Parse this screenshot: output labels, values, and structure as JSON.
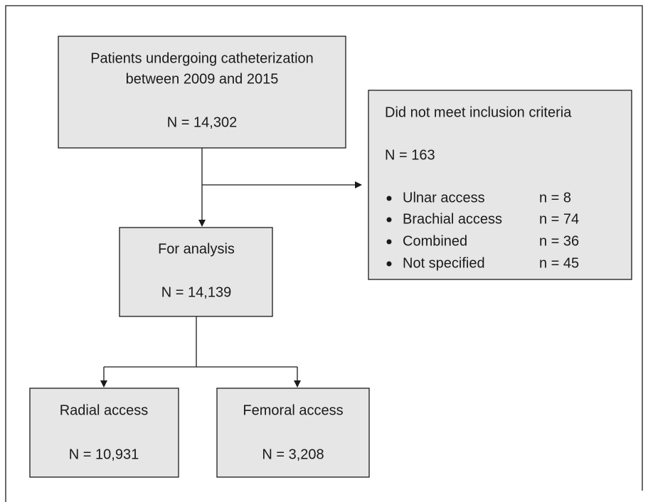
{
  "screening": {
    "lines": [
      "Patients undergoing catheterization",
      "between 2009 and 2015"
    ],
    "count": "N = 14,302"
  },
  "excluded": {
    "title": "Did not meet inclusion criteria",
    "count": "N = 163",
    "items": [
      {
        "label": "Ulnar access",
        "n": "n = 8"
      },
      {
        "label": "Brachial access",
        "n": "n = 74"
      },
      {
        "label": "Combined",
        "n": "n = 36"
      },
      {
        "label": "Not specified",
        "n": "n = 45"
      }
    ]
  },
  "analysis": {
    "title": "For analysis",
    "count": "N = 14,139"
  },
  "groups": [
    {
      "title": "Radial access",
      "count": "N = 10,931"
    },
    {
      "title": "Femoral access",
      "count": "N = 3,208"
    }
  ]
}
